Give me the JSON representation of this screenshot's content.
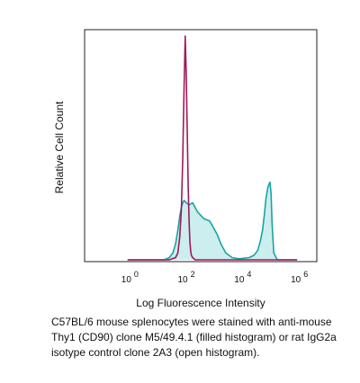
{
  "chart_data": {
    "type": "area",
    "xlabel": "Log Fluorescence Intensity",
    "ylabel": "Relative Cell Count",
    "x_scale": "log",
    "xlim": [
      0.03,
      5000000
    ],
    "ylim": [
      0,
      100
    ],
    "grid": false,
    "x_ticks": [
      {
        "base": "10",
        "exp": "0",
        "value": 1
      },
      {
        "base": "10",
        "exp": "2",
        "value": 100
      },
      {
        "base": "10",
        "exp": "4",
        "value": 10000
      },
      {
        "base": "10",
        "exp": "6",
        "value": 1000000
      }
    ],
    "series": [
      {
        "style": "open",
        "color": "#a0195a",
        "x": [
          1,
          10,
          30,
          50,
          60,
          70,
          80,
          90,
          100,
          110,
          120,
          130,
          140,
          150,
          160,
          170,
          180,
          200,
          250,
          300,
          1000000
        ],
        "y": [
          0,
          0,
          0,
          1,
          3,
          10,
          22,
          45,
          75,
          98,
          80,
          55,
          32,
          17,
          8,
          4,
          2,
          1,
          0,
          0,
          0
        ]
      },
      {
        "style": "filled",
        "color": "#1aa3a3",
        "fill": "#cdeeee",
        "x": [
          1,
          10,
          20,
          30,
          40,
          50,
          60,
          70,
          80,
          90,
          100,
          120,
          150,
          200,
          300,
          500,
          800,
          1000,
          1500,
          2000,
          3000,
          5000,
          8000,
          10000,
          20000,
          30000,
          40000,
          50000,
          60000,
          70000,
          80000,
          90000,
          100000,
          110000,
          120000,
          130000,
          150000,
          200000,
          1000000
        ],
        "y": [
          0,
          0,
          0,
          1,
          3,
          7,
          13,
          19,
          23,
          25,
          26,
          25,
          24,
          25,
          21,
          18,
          17,
          15,
          11,
          7,
          3,
          1,
          0.5,
          0.5,
          1,
          2,
          4,
          8,
          13,
          20,
          27,
          31,
          33,
          34,
          29,
          16,
          3,
          0,
          0
        ]
      }
    ]
  },
  "caption": [
    "C57BL/6 mouse splenocytes were stained with anti-mouse",
    "Thy1 (CD90) clone M5/49.4.1 (filled histogram) or rat IgG2a",
    "isotype control clone 2A3 (open histogram)."
  ]
}
